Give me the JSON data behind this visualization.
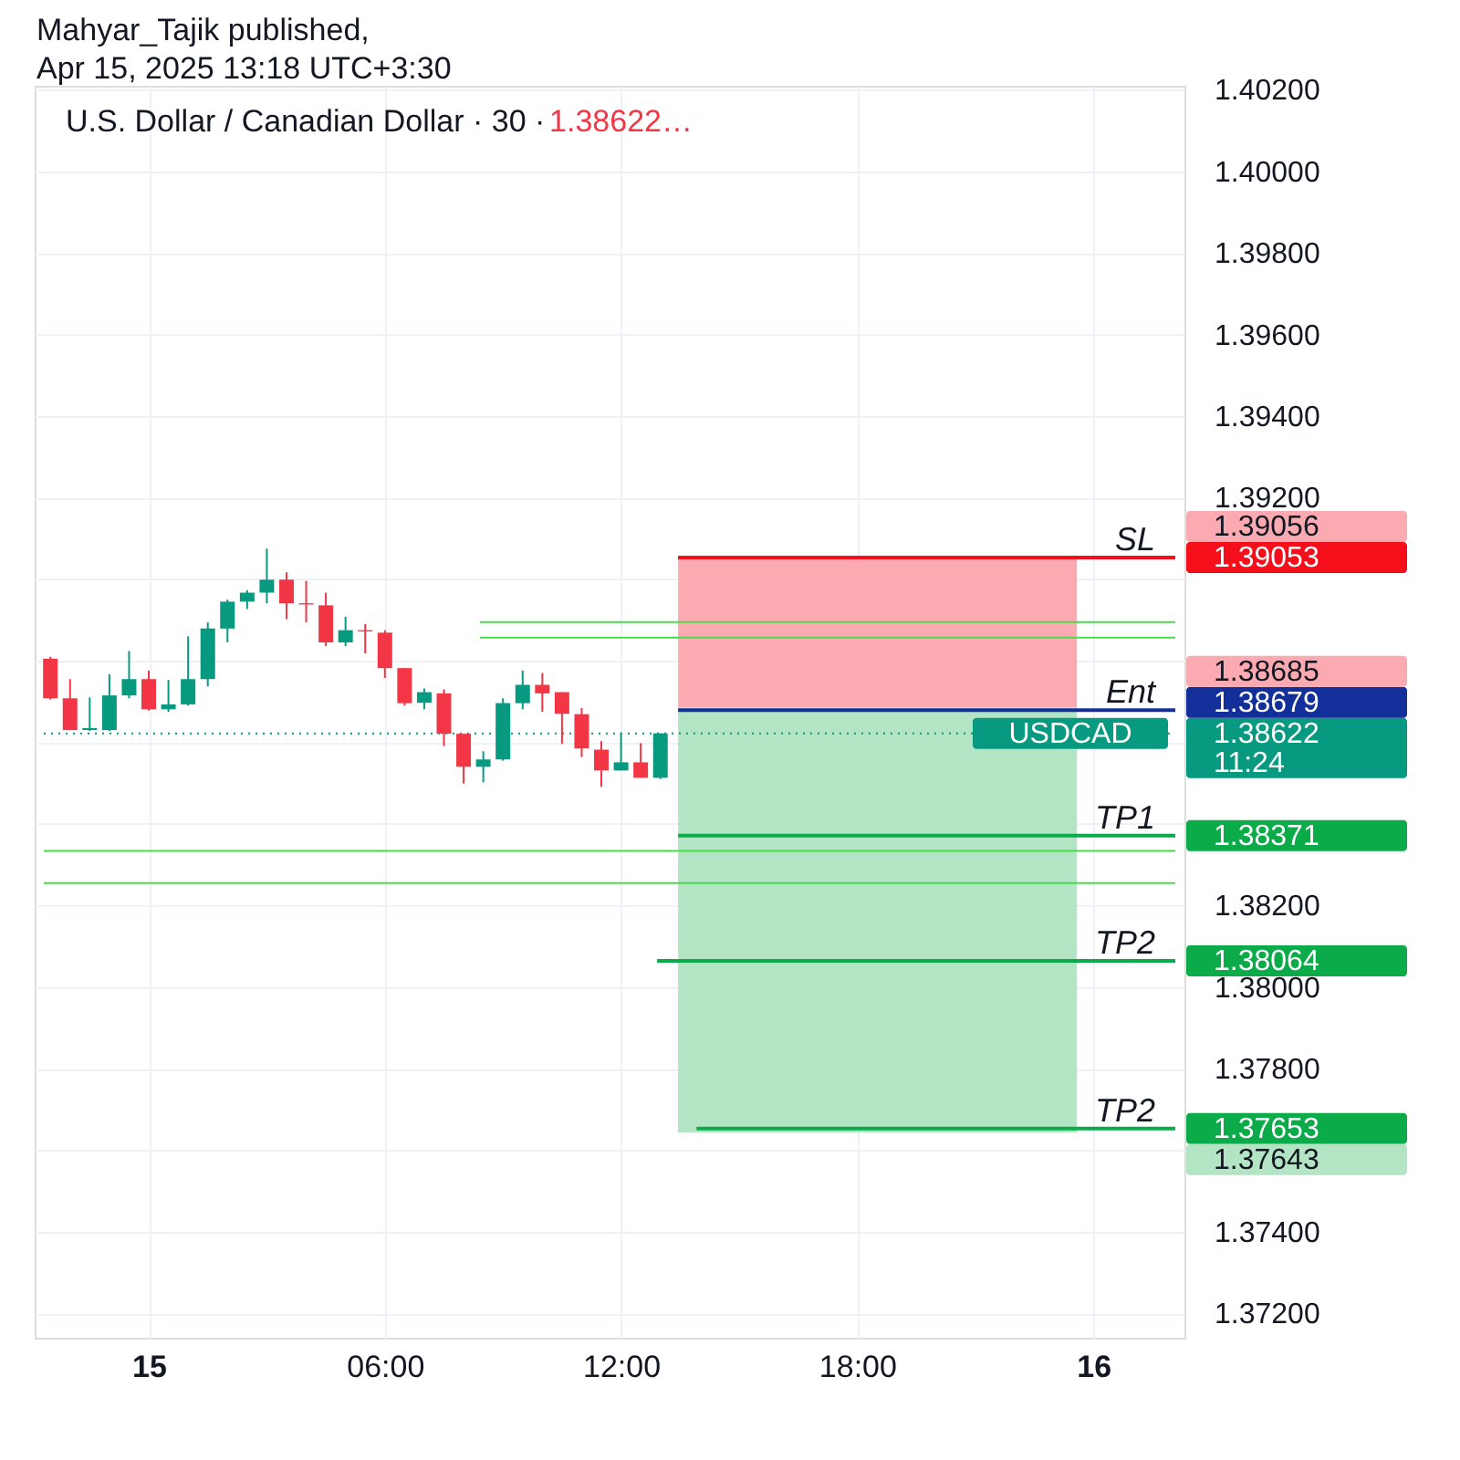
{
  "chart_data": {
    "type": "candlestick",
    "title": "U.S. Dollar / Canadian Dollar · 30 ·",
    "subtitle": "1.38622…",
    "x": [
      "2025-04-14T21:30",
      "2025-04-14T22:00",
      "2025-04-14T22:30",
      "2025-04-14T23:00",
      "2025-04-14T23:30",
      "2025-04-15T00:00",
      "2025-04-15T00:30",
      "2025-04-15T01:00",
      "2025-04-15T01:30",
      "2025-04-15T02:00",
      "2025-04-15T02:30",
      "2025-04-15T03:00",
      "2025-04-15T03:30",
      "2025-04-15T04:00",
      "2025-04-15T04:30",
      "2025-04-15T05:00",
      "2025-04-15T05:30",
      "2025-04-15T06:00",
      "2025-04-15T06:30",
      "2025-04-15T07:00",
      "2025-04-15T07:30",
      "2025-04-15T08:00",
      "2025-04-15T08:30",
      "2025-04-15T09:00",
      "2025-04-15T09:30",
      "2025-04-15T10:00",
      "2025-04-15T10:30",
      "2025-04-15T11:00",
      "2025-04-15T11:30",
      "2025-04-15T12:00",
      "2025-04-15T12:30",
      "2025-04-15T13:00"
    ],
    "ohlc": [
      [
        1.38805,
        1.3881,
        1.38705,
        1.38708
      ],
      [
        1.38708,
        1.38755,
        1.3863,
        1.3863
      ],
      [
        1.3863,
        1.3871,
        1.38628,
        1.38635
      ],
      [
        1.3863,
        1.38767,
        1.38628,
        1.38715
      ],
      [
        1.38715,
        1.38824,
        1.38708,
        1.38755
      ],
      [
        1.38755,
        1.38776,
        1.38678,
        1.38681
      ],
      [
        1.38681,
        1.38753,
        1.38675,
        1.38693
      ],
      [
        1.38693,
        1.3886,
        1.3869,
        1.38755
      ],
      [
        1.38755,
        1.38894,
        1.38737,
        1.38879
      ],
      [
        1.38879,
        1.3895,
        1.38845,
        1.38945
      ],
      [
        1.38945,
        1.38973,
        1.38927,
        1.38967
      ],
      [
        1.38967,
        1.39075,
        1.38941,
        1.38999
      ],
      [
        1.38999,
        1.39017,
        1.38902,
        1.38941
      ],
      [
        1.38941,
        1.38996,
        1.38894,
        1.38938
      ],
      [
        1.38936,
        1.38967,
        1.38836,
        1.38845
      ],
      [
        1.38845,
        1.38908,
        1.38836,
        1.38875
      ],
      [
        1.38875,
        1.3889,
        1.38818,
        1.38872
      ],
      [
        1.38869,
        1.38875,
        1.38758,
        1.38782
      ],
      [
        1.38782,
        1.38782,
        1.3869,
        1.38696
      ],
      [
        1.38697,
        1.38732,
        1.38681,
        1.38723
      ],
      [
        1.3872,
        1.3873,
        1.38591,
        1.38621
      ],
      [
        1.38621,
        1.38621,
        1.38499,
        1.3854
      ],
      [
        1.3854,
        1.38578,
        1.38502,
        1.38558
      ],
      [
        1.38558,
        1.38708,
        1.38555,
        1.38696
      ],
      [
        1.38696,
        1.38776,
        1.38681,
        1.38741
      ],
      [
        1.38741,
        1.3877,
        1.38675,
        1.3872
      ],
      [
        1.38723,
        1.38723,
        1.38596,
        1.3867
      ],
      [
        1.38669,
        1.38684,
        1.38564,
        1.38585
      ],
      [
        1.38582,
        1.38603,
        1.38491,
        1.38531
      ],
      [
        1.38531,
        1.38624,
        1.38531,
        1.38551
      ],
      [
        1.38551,
        1.38598,
        1.38513,
        1.38513
      ],
      [
        1.38513,
        1.38622,
        1.3851,
        1.38622
      ]
    ],
    "colors": [
      "#f23645",
      "#f23645",
      "#089981",
      "#089981",
      "#089981",
      "#f23645",
      "#089981",
      "#089981",
      "#089981",
      "#089981",
      "#089981",
      "#089981",
      "#f23645",
      "#f23645",
      "#f23645",
      "#089981",
      "#f23645",
      "#f23645",
      "#f23645",
      "#089981",
      "#f23645",
      "#f23645",
      "#089981",
      "#089981",
      "#089981",
      "#f23645",
      "#f23645",
      "#f23645",
      "#f23645",
      "#089981",
      "#f23645",
      "#089981"
    ],
    "series": [
      {
        "type": "line",
        "x": [
          "2025-04-15T13:27",
          "2025-04-15T23:35"
        ],
        "values": [
          null,
          null
        ],
        "lower": [
          1.38685,
          1.38685
        ],
        "upper": [
          1.39056,
          1.39056
        ],
        "color": "#fcaab1"
      },
      {
        "type": "line",
        "x": [
          "2025-04-15T13:27",
          "2025-04-15T23:35"
        ],
        "values": [
          null,
          null
        ],
        "lower": [
          1.37643,
          1.37643
        ],
        "upper": [
          1.38685,
          1.38685
        ],
        "color": "#b3e4c4"
      },
      {
        "type": "line",
        "x": [
          "2025-04-15T08:25",
          "2025-04-16T02:05"
        ],
        "values": [
          1.38895,
          1.38895
        ],
        "color": "#4cd94c"
      },
      {
        "type": "line",
        "x": [
          "2025-04-15T08:25",
          "2025-04-16T02:05"
        ],
        "values": [
          1.38857,
          1.38857
        ],
        "color": "#4cd94c"
      },
      {
        "name": "USDCAD",
        "type": "line",
        "line_style": "dotted",
        "x": [
          "2025-04-14T21:20",
          "2025-04-16T02:05"
        ],
        "values": [
          1.38622,
          1.38622
        ],
        "value_labels": [
          null,
          "1.38622\n11:24"
        ],
        "color": "#089981"
      },
      {
        "name": "SL",
        "type": "line",
        "x": [
          "2025-04-15T13:27",
          "2025-04-16T02:05"
        ],
        "values": [
          1.39053,
          1.39053
        ],
        "value_labels": [
          null,
          "1.39053"
        ],
        "color": "#f50f1b"
      },
      {
        "name": "Ent",
        "type": "line",
        "x": [
          "2025-04-15T13:27",
          "2025-04-16T02:05"
        ],
        "values": [
          1.38679,
          1.38679
        ],
        "value_labels": [
          null,
          "1.38679"
        ],
        "color": "#13309a"
      },
      {
        "name": "TP1",
        "type": "line",
        "x": [
          "2025-04-15T13:27",
          "2025-04-16T02:05"
        ],
        "values": [
          1.38371,
          1.38371
        ],
        "value_labels": [
          null,
          "1.38371"
        ],
        "color": "#0cab4a"
      },
      {
        "name": "TP2",
        "type": "line",
        "x": [
          "2025-04-15T12:55",
          "2025-04-16T02:05"
        ],
        "values": [
          1.38064,
          1.38064
        ],
        "value_labels": [
          null,
          "1.38064"
        ],
        "color": "#0cab4a"
      },
      {
        "name": "TP2",
        "type": "line",
        "x": [
          "2025-04-15T13:55",
          "2025-04-16T02:05"
        ],
        "values": [
          1.37653,
          1.37653
        ],
        "value_labels": [
          null,
          "1.37653"
        ],
        "color": "#0cab4a"
      }
    ],
    "ref_lines": [
      {
        "axis": "y",
        "value": 1.38334,
        "color": "#4cd94c"
      },
      {
        "axis": "y",
        "value": 1.38255,
        "color": "#4cd94c"
      }
    ],
    "xlim": [
      "2025-04-14T21:20",
      "2025-04-16T02:05"
    ],
    "xticks": [
      {
        "value": "2025-04-15T00:00",
        "label": "15"
      },
      {
        "value": "2025-04-15T06:00",
        "label": "06:00"
      },
      {
        "value": "2025-04-15T12:00",
        "label": "12:00"
      },
      {
        "value": "2025-04-15T18:00",
        "label": "18:00"
      },
      {
        "value": "2025-04-16T00:00",
        "label": "16"
      }
    ],
    "ylim": [
      1.3714,
      1.4021
    ],
    "yticks": [
      {
        "value": 1.372,
        "label": "1.37200"
      },
      {
        "value": 1.374,
        "label": "1.37400"
      },
      {
        "value": 1.376,
        "label": null
      },
      {
        "value": 1.378,
        "label": "1.37800"
      },
      {
        "value": 1.38,
        "label": "1.38000"
      },
      {
        "value": 1.382,
        "label": "1.38200"
      },
      {
        "value": 1.384,
        "label": null
      },
      {
        "value": 1.386,
        "label": null
      },
      {
        "value": 1.388,
        "label": null
      },
      {
        "value": 1.39,
        "label": null
      },
      {
        "value": 1.392,
        "label": "1.39200"
      },
      {
        "value": 1.394,
        "label": "1.39400"
      },
      {
        "value": 1.396,
        "label": "1.39600"
      },
      {
        "value": 1.398,
        "label": "1.39800"
      },
      {
        "value": 1.4,
        "label": "1.40000"
      },
      {
        "value": 1.402,
        "label": "1.40200"
      }
    ],
    "grid": true,
    "annotations": [
      "Mahyar_Tajik published,",
      "Apr 15, 2025 13:18 UTC+3:30",
      "1.39056",
      "1.38685",
      "1.37643"
    ]
  }
}
